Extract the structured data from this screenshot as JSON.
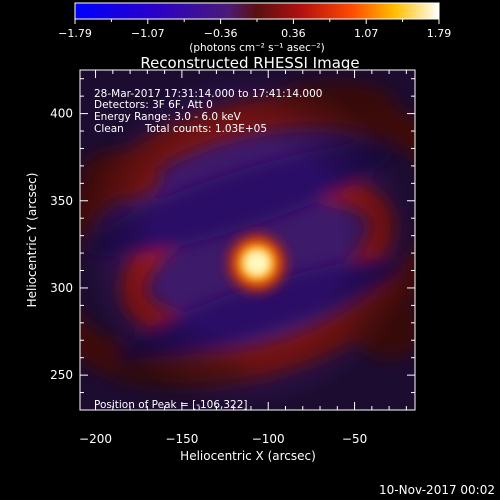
{
  "colorbar": {
    "ticks": [
      "−1.79",
      "−1.07",
      "−0.36",
      "0.36",
      "1.07",
      "1.79"
    ],
    "units": "(photons cm⁻² s⁻¹ asec⁻²)"
  },
  "chart_data": {
    "type": "heatmap",
    "title": "Reconstructed RHESSI Image",
    "xlabel": "Heliocentric X (arcsec)",
    "ylabel": "Heliocentric Y (arcsec)",
    "xlim": [
      -209,
      -15
    ],
    "ylim": [
      230,
      425
    ],
    "x_ticks": [
      "−200",
      "−150",
      "−100",
      "−50"
    ],
    "y_ticks": [
      "250",
      "300",
      "350",
      "400"
    ],
    "x_tick_values": [
      -200,
      -150,
      -100,
      -50
    ],
    "y_tick_values": [
      250,
      300,
      350,
      400
    ],
    "value_range": [
      -1.79,
      1.79
    ],
    "peak": {
      "x": -106,
      "y": 322
    },
    "annotations": {
      "time_range": "28-Mar-2017 17:31:14.000 to 17:41:14.000",
      "detectors": "Detectors: 3F 6F, Att 0",
      "energy": "Energy Range: 3.0 - 6.0 keV",
      "method": "Clean",
      "counts": "Total counts: 1.03E+05",
      "peak_label": "Position of Peak = [-106,322]"
    }
  },
  "footer": {
    "timestamp": "10-Nov-2017 00:02"
  }
}
